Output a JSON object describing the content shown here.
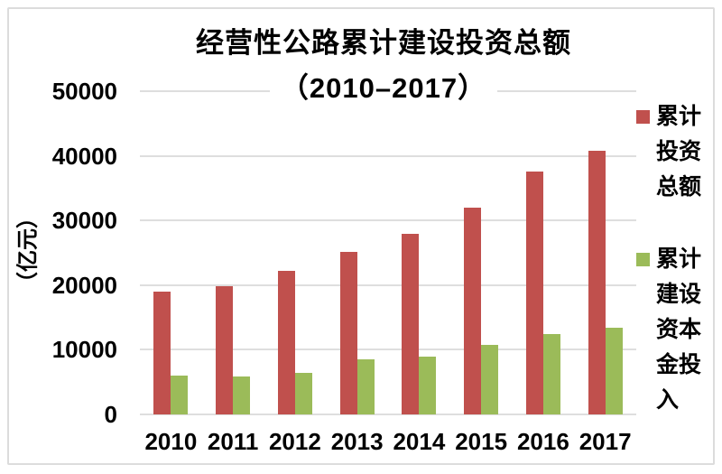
{
  "chart_data": {
    "type": "bar",
    "title_lines": [
      "经营性公路累计建设投资总额",
      "（2010–2017）"
    ],
    "title": "经营性公路累计建设投资总额（2010–2017）",
    "ylabel": "（亿元）",
    "categories": [
      "2010",
      "2011",
      "2012",
      "2013",
      "2014",
      "2015",
      "2016",
      "2017"
    ],
    "series": [
      {
        "key": "total-investment",
        "name": "累计投资总额",
        "color": "#C0504D",
        "values": [
          19000,
          19900,
          22200,
          25200,
          28000,
          32000,
          37600,
          40800
        ]
      },
      {
        "key": "capital-input",
        "name": "累计建设资本金投入",
        "color": "#9BBB59",
        "values": [
          6000,
          5900,
          6400,
          8500,
          9000,
          10700,
          12500,
          13400
        ]
      }
    ],
    "ylim": [
      0,
      50000
    ],
    "yticks": [
      0,
      10000,
      20000,
      30000,
      40000,
      50000
    ],
    "grid": true,
    "legend_position": "right"
  },
  "colors": {
    "gridline": "#DEDEDE",
    "frame_border": "#DCDCDC",
    "text": "#000000",
    "background": "#FFFFFF"
  }
}
